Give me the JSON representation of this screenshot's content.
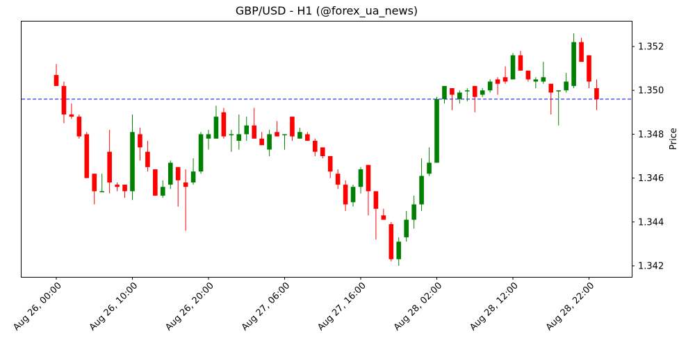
{
  "chart_data": {
    "type": "candlestick",
    "title": "GBP/USD - H1 (@forex_ua_news)",
    "xlabel": "",
    "ylabel": "Price",
    "ylim": [
      1.3415,
      1.3531
    ],
    "yticks": [
      1.342,
      1.344,
      1.346,
      1.348,
      1.35,
      1.352
    ],
    "ytick_labels": [
      "1.342",
      "1.344",
      "1.346",
      "1.348",
      "1.350",
      "1.352"
    ],
    "xtick_labels": [
      "Aug 26, 00:00",
      "Aug 26, 10:00",
      "Aug 26, 20:00",
      "Aug 27, 06:00",
      "Aug 27, 16:00",
      "Aug 28, 02:00",
      "Aug 28, 12:00",
      "Aug 28, 22:00"
    ],
    "xtick_index": [
      0,
      10,
      20,
      30,
      40,
      50,
      60,
      70
    ],
    "grid": false,
    "up_color": "#008000",
    "down_color": "#ff0000",
    "hline": {
      "value": 1.3496,
      "color": "#0000ff",
      "style": "dashed"
    },
    "candles": [
      {
        "t": "Aug 26 00:00",
        "o": 1.3507,
        "h": 1.3512,
        "l": 1.3502,
        "c": 1.3502
      },
      {
        "t": "Aug 26 01:00",
        "o": 1.3502,
        "h": 1.3504,
        "l": 1.3485,
        "c": 1.3489
      },
      {
        "t": "Aug 26 02:00",
        "o": 1.3489,
        "h": 1.3494,
        "l": 1.3487,
        "c": 1.3488
      },
      {
        "t": "Aug 26 03:00",
        "o": 1.3488,
        "h": 1.3489,
        "l": 1.3478,
        "c": 1.3479
      },
      {
        "t": "Aug 26 04:00",
        "o": 1.348,
        "h": 1.3481,
        "l": 1.346,
        "c": 1.346
      },
      {
        "t": "Aug 26 05:00",
        "o": 1.3462,
        "h": 1.3462,
        "l": 1.3448,
        "c": 1.3454
      },
      {
        "t": "Aug 26 06:00",
        "o": 1.3454,
        "h": 1.3462,
        "l": 1.3454,
        "c": 1.3454
      },
      {
        "t": "Aug 26 07:00",
        "o": 1.3472,
        "h": 1.3482,
        "l": 1.3453,
        "c": 1.3458
      },
      {
        "t": "Aug 26 08:00",
        "o": 1.3457,
        "h": 1.3458,
        "l": 1.3454,
        "c": 1.3456
      },
      {
        "t": "Aug 26 09:00",
        "o": 1.3457,
        "h": 1.3457,
        "l": 1.3451,
        "c": 1.3454
      },
      {
        "t": "Aug 26 10:00",
        "o": 1.3454,
        "h": 1.3489,
        "l": 1.345,
        "c": 1.3481
      },
      {
        "t": "Aug 26 11:00",
        "o": 1.348,
        "h": 1.3483,
        "l": 1.3468,
        "c": 1.3474
      },
      {
        "t": "Aug 26 12:00",
        "o": 1.3472,
        "h": 1.3477,
        "l": 1.3463,
        "c": 1.3465
      },
      {
        "t": "Aug 26 13:00",
        "o": 1.3464,
        "h": 1.3464,
        "l": 1.3452,
        "c": 1.3452
      },
      {
        "t": "Aug 26 14:00",
        "o": 1.3452,
        "h": 1.3459,
        "l": 1.3451,
        "c": 1.3456
      },
      {
        "t": "Aug 26 15:00",
        "o": 1.3457,
        "h": 1.3468,
        "l": 1.3455,
        "c": 1.3467
      },
      {
        "t": "Aug 26 16:00",
        "o": 1.3465,
        "h": 1.3465,
        "l": 1.3447,
        "c": 1.3459
      },
      {
        "t": "Aug 26 17:00",
        "o": 1.3458,
        "h": 1.3464,
        "l": 1.3436,
        "c": 1.3456
      },
      {
        "t": "Aug 26 18:00",
        "o": 1.3458,
        "h": 1.3469,
        "l": 1.3457,
        "c": 1.3463
      },
      {
        "t": "Aug 26 19:00",
        "o": 1.3463,
        "h": 1.3481,
        "l": 1.3462,
        "c": 1.348
      },
      {
        "t": "Aug 26 20:00",
        "o": 1.3478,
        "h": 1.3482,
        "l": 1.3473,
        "c": 1.348
      },
      {
        "t": "Aug 26 21:00",
        "o": 1.3478,
        "h": 1.3493,
        "l": 1.3478,
        "c": 1.3488
      },
      {
        "t": "Aug 26 22:00",
        "o": 1.349,
        "h": 1.3492,
        "l": 1.3478,
        "c": 1.3479
      },
      {
        "t": "Aug 26 23:00",
        "o": 1.348,
        "h": 1.3482,
        "l": 1.3472,
        "c": 1.348
      },
      {
        "t": "Aug 27 00:00",
        "o": 1.3477,
        "h": 1.3489,
        "l": 1.3473,
        "c": 1.348
      },
      {
        "t": "Aug 27 01:00",
        "o": 1.348,
        "h": 1.3488,
        "l": 1.3477,
        "c": 1.3484
      },
      {
        "t": "Aug 27 02:00",
        "o": 1.3484,
        "h": 1.3492,
        "l": 1.3478,
        "c": 1.3478
      },
      {
        "t": "Aug 27 03:00",
        "o": 1.3478,
        "h": 1.3481,
        "l": 1.3475,
        "c": 1.3475
      },
      {
        "t": "Aug 27 04:00",
        "o": 1.3473,
        "h": 1.3482,
        "l": 1.347,
        "c": 1.348
      },
      {
        "t": "Aug 27 05:00",
        "o": 1.3481,
        "h": 1.3486,
        "l": 1.3479,
        "c": 1.3479
      },
      {
        "t": "Aug 27 06:00",
        "o": 1.348,
        "h": 1.348,
        "l": 1.3473,
        "c": 1.348
      },
      {
        "t": "Aug 27 07:00",
        "o": 1.3488,
        "h": 1.3488,
        "l": 1.3477,
        "c": 1.3479
      },
      {
        "t": "Aug 27 08:00",
        "o": 1.3478,
        "h": 1.3483,
        "l": 1.3478,
        "c": 1.3481
      },
      {
        "t": "Aug 27 09:00",
        "o": 1.348,
        "h": 1.3481,
        "l": 1.3477,
        "c": 1.3477
      },
      {
        "t": "Aug 27 10:00",
        "o": 1.3477,
        "h": 1.3478,
        "l": 1.347,
        "c": 1.3472
      },
      {
        "t": "Aug 27 11:00",
        "o": 1.3474,
        "h": 1.3474,
        "l": 1.3469,
        "c": 1.347
      },
      {
        "t": "Aug 27 12:00",
        "o": 1.347,
        "h": 1.347,
        "l": 1.346,
        "c": 1.3463
      },
      {
        "t": "Aug 27 13:00",
        "o": 1.3462,
        "h": 1.3464,
        "l": 1.3455,
        "c": 1.3457
      },
      {
        "t": "Aug 27 14:00",
        "o": 1.3457,
        "h": 1.3459,
        "l": 1.3445,
        "c": 1.3448
      },
      {
        "t": "Aug 27 15:00",
        "o": 1.3449,
        "h": 1.3457,
        "l": 1.3447,
        "c": 1.3456
      },
      {
        "t": "Aug 27 16:00",
        "o": 1.3456,
        "h": 1.3465,
        "l": 1.3453,
        "c": 1.3464
      },
      {
        "t": "Aug 27 17:00",
        "o": 1.3466,
        "h": 1.3466,
        "l": 1.3443,
        "c": 1.3454
      },
      {
        "t": "Aug 27 18:00",
        "o": 1.3454,
        "h": 1.3454,
        "l": 1.3432,
        "c": 1.3446
      },
      {
        "t": "Aug 27 19:00",
        "o": 1.3443,
        "h": 1.3446,
        "l": 1.3441,
        "c": 1.3441
      },
      {
        "t": "Aug 27 20:00",
        "o": 1.3439,
        "h": 1.344,
        "l": 1.3422,
        "c": 1.3423
      },
      {
        "t": "Aug 27 21:00",
        "o": 1.3423,
        "h": 1.3433,
        "l": 1.342,
        "c": 1.3431
      },
      {
        "t": "Aug 27 22:00",
        "o": 1.3433,
        "h": 1.3445,
        "l": 1.3431,
        "c": 1.3441
      },
      {
        "t": "Aug 27 23:00",
        "o": 1.3441,
        "h": 1.3452,
        "l": 1.3437,
        "c": 1.3448
      },
      {
        "t": "Aug 28 00:00",
        "o": 1.3448,
        "h": 1.3469,
        "l": 1.3445,
        "c": 1.3461
      },
      {
        "t": "Aug 28 01:00",
        "o": 1.3462,
        "h": 1.3474,
        "l": 1.3461,
        "c": 1.3467
      },
      {
        "t": "Aug 28 02:00",
        "o": 1.3467,
        "h": 1.3497,
        "l": 1.3467,
        "c": 1.3496
      },
      {
        "t": "Aug 28 03:00",
        "o": 1.3496,
        "h": 1.3502,
        "l": 1.3494,
        "c": 1.3502
      },
      {
        "t": "Aug 28 04:00",
        "o": 1.3501,
        "h": 1.3501,
        "l": 1.3491,
        "c": 1.3498
      },
      {
        "t": "Aug 28 05:00",
        "o": 1.3496,
        "h": 1.35,
        "l": 1.3494,
        "c": 1.3499
      },
      {
        "t": "Aug 28 06:00",
        "o": 1.35,
        "h": 1.3501,
        "l": 1.3495,
        "c": 1.35
      },
      {
        "t": "Aug 28 07:00",
        "o": 1.3502,
        "h": 1.3502,
        "l": 1.349,
        "c": 1.3497
      },
      {
        "t": "Aug 28 08:00",
        "o": 1.3498,
        "h": 1.3501,
        "l": 1.3497,
        "c": 1.35
      },
      {
        "t": "Aug 28 09:00",
        "o": 1.35,
        "h": 1.3505,
        "l": 1.3499,
        "c": 1.3504
      },
      {
        "t": "Aug 28 10:00",
        "o": 1.3505,
        "h": 1.3506,
        "l": 1.3498,
        "c": 1.3503
      },
      {
        "t": "Aug 28 11:00",
        "o": 1.3506,
        "h": 1.3511,
        "l": 1.3503,
        "c": 1.3504
      },
      {
        "t": "Aug 28 12:00",
        "o": 1.3505,
        "h": 1.3517,
        "l": 1.3505,
        "c": 1.3516
      },
      {
        "t": "Aug 28 13:00",
        "o": 1.3516,
        "h": 1.3518,
        "l": 1.3509,
        "c": 1.3509
      },
      {
        "t": "Aug 28 14:00",
        "o": 1.3509,
        "h": 1.3509,
        "l": 1.3504,
        "c": 1.3505
      },
      {
        "t": "Aug 28 15:00",
        "o": 1.3504,
        "h": 1.3506,
        "l": 1.3501,
        "c": 1.3505
      },
      {
        "t": "Aug 28 16:00",
        "o": 1.3504,
        "h": 1.3513,
        "l": 1.3503,
        "c": 1.3506
      },
      {
        "t": "Aug 28 17:00",
        "o": 1.3503,
        "h": 1.3503,
        "l": 1.3489,
        "c": 1.3499
      },
      {
        "t": "Aug 28 18:00",
        "o": 1.35,
        "h": 1.35,
        "l": 1.3484,
        "c": 1.35
      },
      {
        "t": "Aug 28 19:00",
        "o": 1.35,
        "h": 1.3508,
        "l": 1.3499,
        "c": 1.3504
      },
      {
        "t": "Aug 28 20:00",
        "o": 1.3502,
        "h": 1.3526,
        "l": 1.3501,
        "c": 1.3522
      },
      {
        "t": "Aug 28 21:00",
        "o": 1.3522,
        "h": 1.3524,
        "l": 1.3513,
        "c": 1.3513
      },
      {
        "t": "Aug 28 22:00",
        "o": 1.3516,
        "h": 1.3516,
        "l": 1.3501,
        "c": 1.3504
      },
      {
        "t": "Aug 28 23:00",
        "o": 1.3501,
        "h": 1.3505,
        "l": 1.3491,
        "c": 1.3496
      }
    ]
  }
}
